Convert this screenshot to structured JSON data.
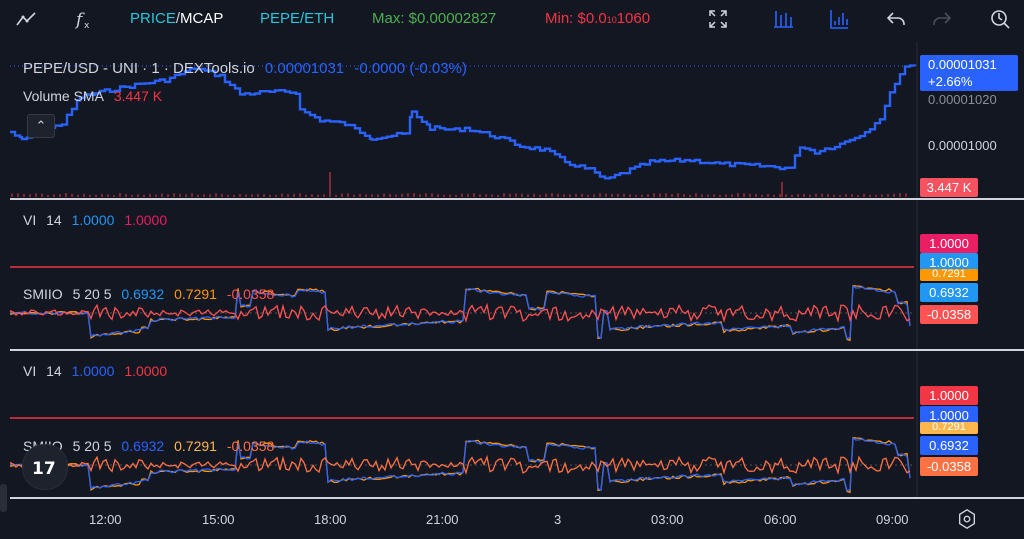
{
  "toolbar": {
    "price_label": "PRICE",
    "slash": "/",
    "mcap_label": "MCAP",
    "pair_label": "PEPE/ETH",
    "max_label": "Max: $0.00002827",
    "min_label": "Min: $0.0",
    "min_sub": "10",
    "min_tail": "1060"
  },
  "main": {
    "symbol": "PEPE/USD - UNI · 1 · DEXTools.io",
    "price": "0.00001031",
    "change": "-0.0000 (-0.03%)",
    "volume_label": "Volume SMA",
    "volume_value": "3.447 K",
    "price_pill": "0.00001031",
    "pct_pill": "+2.66%",
    "axis_1": "0.00001020",
    "axis_2": "0.00001000",
    "volume_pill": "3.447 K"
  },
  "pane_vi_1": {
    "name": "VI",
    "period": "14",
    "v1": "1.0000",
    "v2": "1.0000",
    "pill_top": "1.0000",
    "pill_bot": "1.0000"
  },
  "pane_smiio_1": {
    "name": "SMIIO",
    "params": "5 20 5",
    "v1": "0.6932",
    "v2": "0.7291",
    "v3": "-0.0358",
    "pill_a": "0.6932",
    "pill_b": "-0.0358",
    "pill_hidden": "0.7291"
  },
  "pane_vi_2": {
    "name": "VI",
    "period": "14",
    "v1": "1.0000",
    "v2": "1.0000",
    "pill_top": "1.0000",
    "pill_bot": "1.0000"
  },
  "pane_smiio_2": {
    "name": "SMIIO",
    "params": "5 20 5",
    "v1": "0.6932",
    "v2": "0.7291",
    "v3": "-0.0358",
    "pill_a": "0.6932",
    "pill_b": "-0.0358",
    "pill_hidden": "0.7291"
  },
  "time_axis": [
    "12:00",
    "15:00",
    "18:00",
    "21:00",
    "3",
    "03:00",
    "06:00",
    "09:00"
  ],
  "colors": {
    "bg": "#131722",
    "blue": "#2962ff",
    "red": "#f23645",
    "orange": "#ff9800",
    "green": "#4caf50",
    "teal": "#26c6da"
  }
}
